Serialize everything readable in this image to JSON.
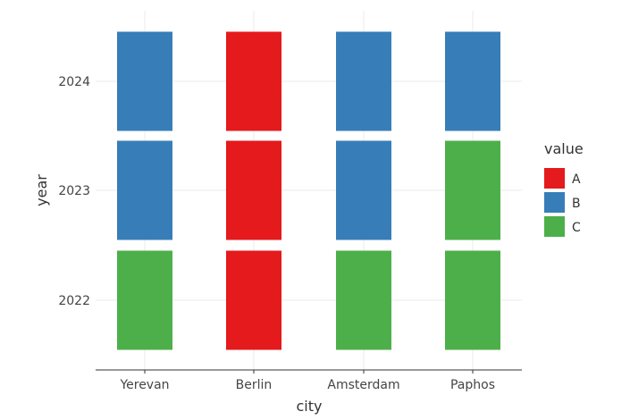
{
  "chart_data": {
    "type": "heatmap",
    "title": "",
    "xlabel": "city",
    "ylabel": "year",
    "categories": [
      "Yerevan",
      "Berlin",
      "Amsterdam",
      "Paphos"
    ],
    "y_categories": [
      "2022",
      "2023",
      "2024"
    ],
    "cells": [
      {
        "city": "Yerevan",
        "year": "2022",
        "value": "C"
      },
      {
        "city": "Yerevan",
        "year": "2023",
        "value": "B"
      },
      {
        "city": "Yerevan",
        "year": "2024",
        "value": "B"
      },
      {
        "city": "Berlin",
        "year": "2022",
        "value": "A"
      },
      {
        "city": "Berlin",
        "year": "2023",
        "value": "A"
      },
      {
        "city": "Berlin",
        "year": "2024",
        "value": "A"
      },
      {
        "city": "Amsterdam",
        "year": "2022",
        "value": "C"
      },
      {
        "city": "Amsterdam",
        "year": "2023",
        "value": "B"
      },
      {
        "city": "Amsterdam",
        "year": "2024",
        "value": "B"
      },
      {
        "city": "Paphos",
        "year": "2022",
        "value": "C"
      },
      {
        "city": "Paphos",
        "year": "2023",
        "value": "C"
      },
      {
        "city": "Paphos",
        "year": "2024",
        "value": "B"
      }
    ],
    "legend": {
      "title": "value",
      "placement": "right",
      "items": [
        {
          "label": "A",
          "color": "#e41a1c"
        },
        {
          "label": "B",
          "color": "#377eb8"
        },
        {
          "label": "C",
          "color": "#4daf4a"
        }
      ]
    },
    "grid": true
  }
}
